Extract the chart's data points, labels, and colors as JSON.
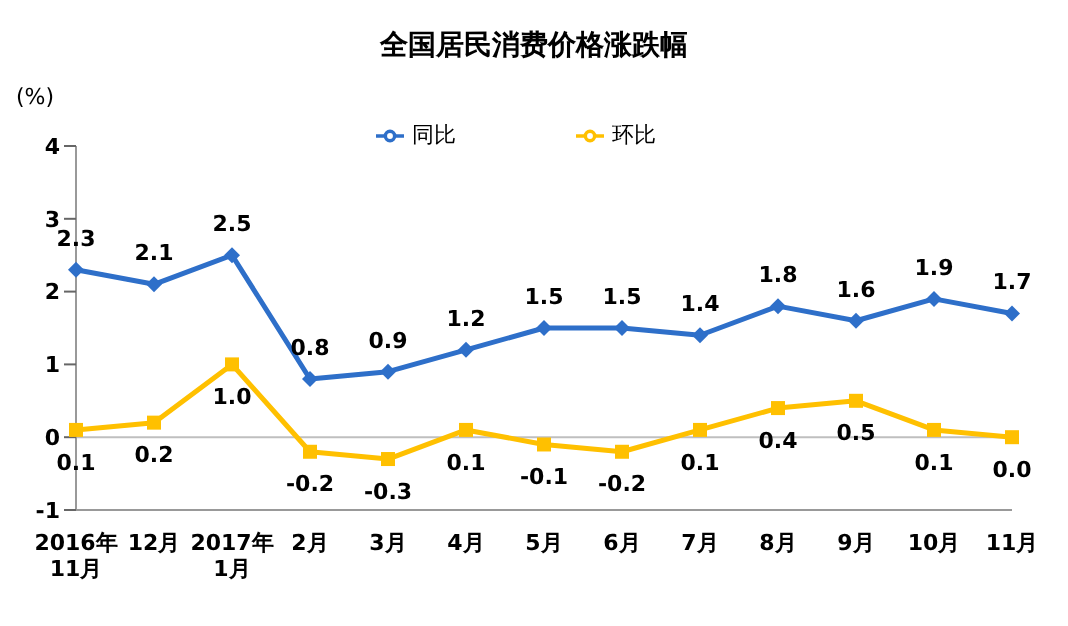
{
  "chart_data": {
    "type": "line",
    "title": "全国居民消费价格涨跌幅",
    "ylabel": "(%)",
    "categories": [
      "2016年\n11月",
      "12月",
      "2017年\n1月",
      "2月",
      "3月",
      "4月",
      "5月",
      "6月",
      "7月",
      "8月",
      "9月",
      "10月",
      "11月"
    ],
    "series": [
      {
        "name": "同比",
        "color": "#2e6fc9",
        "marker": "diamond",
        "values": [
          2.3,
          2.1,
          2.5,
          0.8,
          0.9,
          1.2,
          1.5,
          1.5,
          1.4,
          1.8,
          1.6,
          1.9,
          1.7
        ],
        "value_labels": [
          "2.3",
          "2.1",
          "2.5",
          "0.8",
          "0.9",
          "1.2",
          "1.5",
          "1.5",
          "1.4",
          "1.8",
          "1.6",
          "1.9",
          "1.7"
        ]
      },
      {
        "name": "环比",
        "color": "#ffc000",
        "marker": "square",
        "values": [
          0.1,
          0.2,
          1.0,
          -0.2,
          -0.3,
          0.1,
          -0.1,
          -0.2,
          0.1,
          0.4,
          0.5,
          0.1,
          0.0
        ],
        "value_labels": [
          "0.1",
          "0.2",
          "1.0",
          "-0.2",
          "-0.3",
          "0.1",
          "-0.1",
          "-0.2",
          "0.1",
          "0.4",
          "0.5",
          "0.1",
          "0.0"
        ]
      }
    ],
    "ylim": [
      -1,
      4
    ],
    "yticks": [
      -1,
      0,
      1,
      2,
      3,
      4
    ],
    "ref_lines": [
      {
        "axis": "y",
        "value": 0,
        "color": "#bfbfbf"
      }
    ],
    "legend": "top"
  }
}
